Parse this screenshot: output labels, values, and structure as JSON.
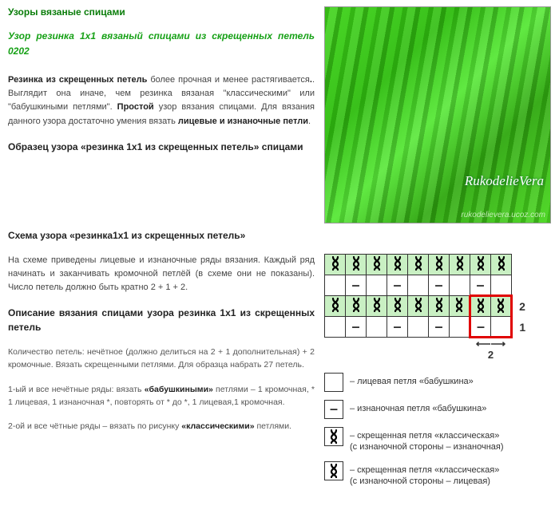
{
  "header": {
    "breadcrumb": "Узоры вязаные спицами",
    "title": "Узор резинка 1х1 вязаный спицами из скрещенных петель 0202"
  },
  "photo": {
    "watermark1": "RukodelieVera",
    "watermark2": "rukodelievera.ucoz.com"
  },
  "intro": {
    "p1_b1": "Резинка из скрещенных петель",
    "p1_t1": " более прочная и менее растягивается",
    "p1_t2": ". Выглядит она иначе, чем резинка вязаная \"классическими\" или \"бабушкиными петлями\". ",
    "p1_b2": "Простой",
    "p1_t3": " узор вязания спицами. Для вязания данного узора достаточно умения вязать ",
    "p1_b3": "лицевые и изнаночные петли",
    "p1_t4": "."
  },
  "h_sample": "Образец узора «резинка 1х1 из скрещенных петель» спицами",
  "h_scheme": "Схема  узора «резинка1х1 из скрещенных петель»",
  "scheme_note": "На схеме приведены лицевые и изнаночные ряды вязания. Каждый ряд начинать и заканчивать кромочной петлёй (в схеме они не показаны). Число петель должно быть кратно 2 + 1 + 2.",
  "h_desc": "Описание вязания спицами узора резинка 1х1 из скрещенных петель",
  "desc": {
    "p1": "Количество петель: нечётное (должно делиться на 2 + 1 дополнительная) + 2 кромочные. Вязать скрещенными петлями. Для образца набрать 27 петель.",
    "p2_a": "1-ый и все нечётные ряды: вязать ",
    "p2_b": "«бабушкиными»",
    "p2_c": " петлями – 1 кромочная, * 1 лицевая, 1 изнаночная *, повторять от * до *, 1 лицевая,1 кромочная.",
    "p3_a": "2-ой и все чётные ряды – вязать по рисунку ",
    "p3_b": "«классическими»",
    "p3_c": " петлями."
  },
  "chart": {
    "cols": 9,
    "row_labels": [
      "",
      "",
      "2",
      "1"
    ],
    "repeat_label": "2",
    "rows": [
      {
        "bg": "g",
        "cells": [
          "t",
          "t",
          "t",
          "t",
          "t",
          "t",
          "t",
          "t",
          "t"
        ]
      },
      {
        "bg": "w",
        "cells": [
          "",
          "-",
          "",
          "-",
          "",
          "-",
          "",
          "-",
          ""
        ]
      },
      {
        "bg": "g",
        "cells": [
          "t",
          "t",
          "t",
          "t",
          "t",
          "t",
          "t",
          "t",
          "t"
        ]
      },
      {
        "bg": "w",
        "cells": [
          "",
          "-",
          "",
          "-",
          "",
          "-",
          "",
          "-",
          ""
        ]
      }
    ],
    "highlight": {
      "row_start": 2,
      "row_end": 3,
      "col_start": 7,
      "col_end": 8
    }
  },
  "legend": {
    "items": [
      {
        "sym": "",
        "text": "– лицевая петля «бабушкина»"
      },
      {
        "sym": "–",
        "text": "– изнаночная петля «бабушкина»"
      },
      {
        "sym": "t",
        "text": "– скрещенная петля «классическая»",
        "sub": "(с изнаночной стороны – изнаночная)"
      },
      {
        "sym": "t",
        "text": "– скрещенная петля «классическая»",
        "sub": "(с изнаночной стороны – лицевая)"
      }
    ]
  }
}
